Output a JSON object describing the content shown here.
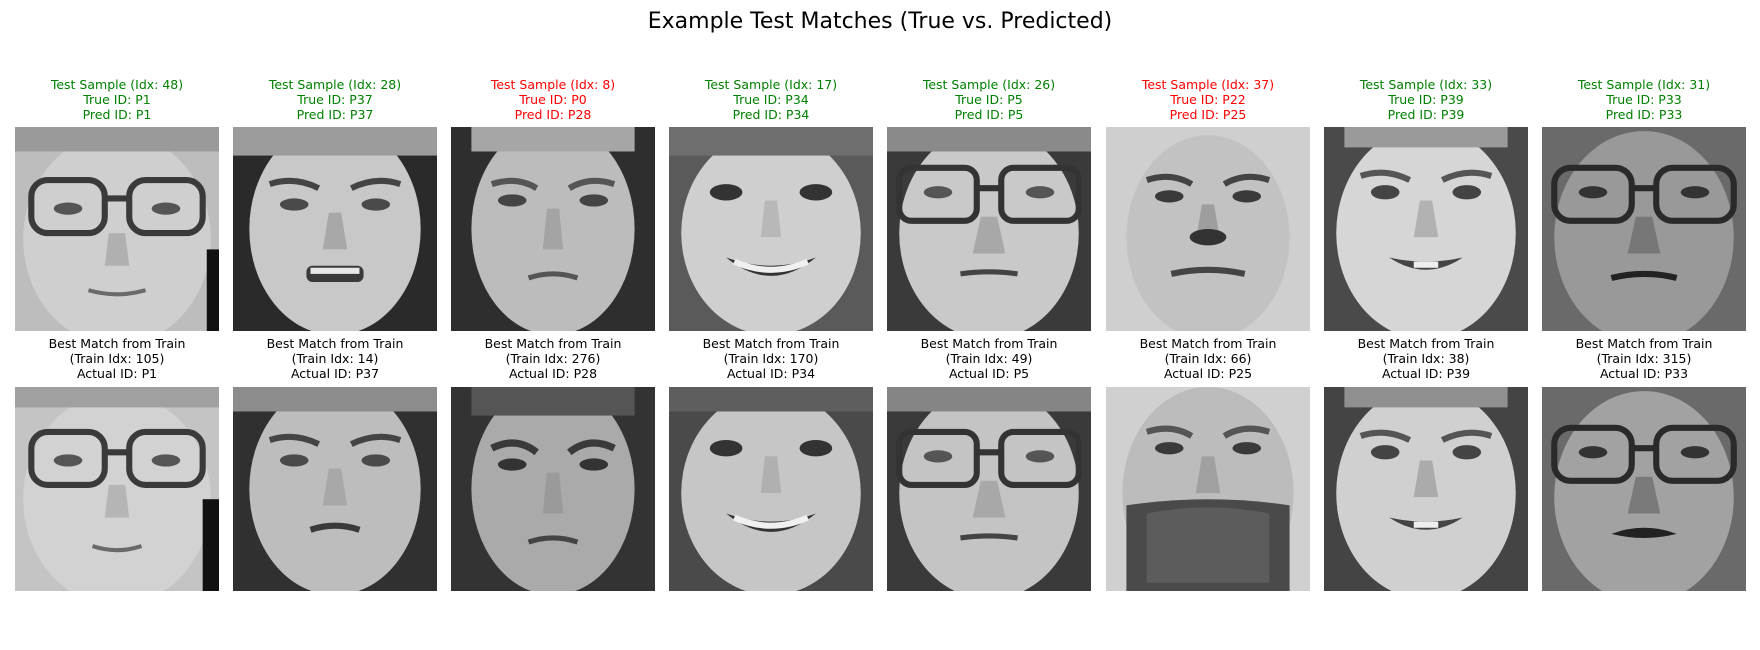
{
  "title": "Example Test Matches (True vs. Predicted)",
  "status_colors": {
    "correct": "#008000",
    "incorrect": "#ff0000"
  },
  "pairs": [
    {
      "test_caption": [
        "Test Sample (Idx: 48)",
        "True ID: P1",
        "Pred ID: P1"
      ],
      "correct": true,
      "train_caption": [
        "Best Match from Train",
        "(Train Idx: 105)",
        "Actual ID: P1"
      ]
    },
    {
      "test_caption": [
        "Test Sample (Idx: 28)",
        "True ID: P37",
        "Pred ID: P37"
      ],
      "correct": true,
      "train_caption": [
        "Best Match from Train",
        "(Train Idx: 14)",
        "Actual ID: P37"
      ]
    },
    {
      "test_caption": [
        "Test Sample (Idx: 8)",
        "True ID: P0",
        "Pred ID: P28"
      ],
      "correct": false,
      "train_caption": [
        "Best Match from Train",
        "(Train Idx: 276)",
        "Actual ID: P28"
      ]
    },
    {
      "test_caption": [
        "Test Sample (Idx: 17)",
        "True ID: P34",
        "Pred ID: P34"
      ],
      "correct": true,
      "train_caption": [
        "Best Match from Train",
        "(Train Idx: 170)",
        "Actual ID: P34"
      ]
    },
    {
      "test_caption": [
        "Test Sample (Idx: 26)",
        "True ID: P5",
        "Pred ID: P5"
      ],
      "correct": true,
      "train_caption": [
        "Best Match from Train",
        "(Train Idx: 49)",
        "Actual ID: P5"
      ]
    },
    {
      "test_caption": [
        "Test Sample (Idx: 37)",
        "True ID: P22",
        "Pred ID: P25"
      ],
      "correct": false,
      "train_caption": [
        "Best Match from Train",
        "(Train Idx: 66)",
        "Actual ID: P25"
      ]
    },
    {
      "test_caption": [
        "Test Sample (Idx: 33)",
        "True ID: P39",
        "Pred ID: P39"
      ],
      "correct": true,
      "train_caption": [
        "Best Match from Train",
        "(Train Idx: 38)",
        "Actual ID: P39"
      ]
    },
    {
      "test_caption": [
        "Test Sample (Idx: 31)",
        "True ID: P33",
        "Pred ID: P33"
      ],
      "correct": true,
      "train_caption": [
        "Best Match from Train",
        "(Train Idx: 315)",
        "Actual ID: P33"
      ]
    }
  ]
}
